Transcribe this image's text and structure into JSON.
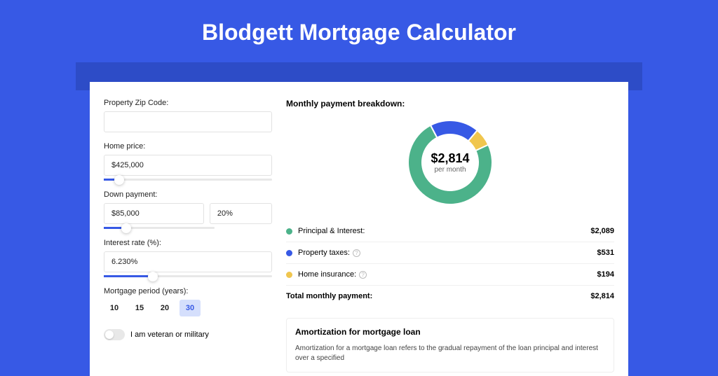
{
  "title": "Blodgett Mortgage Calculator",
  "colors": {
    "page_bg": "#3759e5",
    "band_bg": "#2d4cc7",
    "panel_bg": "#ffffff",
    "accent": "#3759e5",
    "active_btn_bg": "#d5dffc"
  },
  "form": {
    "zip": {
      "label": "Property Zip Code:",
      "value": ""
    },
    "home_price": {
      "label": "Home price:",
      "value": "$425,000",
      "slider_fill_pct": 9
    },
    "down_payment": {
      "label": "Down payment:",
      "value": "$85,000",
      "pct_value": "20%",
      "slider_fill_pct": 20
    },
    "interest_rate": {
      "label": "Interest rate (%):",
      "value": "6.230%",
      "slider_fill_pct": 29
    },
    "period": {
      "label": "Mortgage period (years):",
      "options": [
        "10",
        "15",
        "20",
        "30"
      ],
      "selected": "30"
    },
    "veteran": {
      "label": "I am veteran or military",
      "checked": false
    }
  },
  "breakdown": {
    "title": "Monthly payment breakdown:",
    "donut": {
      "center_value": "$2,814",
      "center_sub": "per month",
      "segments": [
        {
          "label": "Principal & Interest",
          "value": 2089,
          "color": "#4cb28a",
          "show_info": false
        },
        {
          "label": "Property taxes",
          "value": 531,
          "color": "#3759e5",
          "show_info": true
        },
        {
          "label": "Home insurance",
          "value": 194,
          "color": "#f0c64e",
          "show_info": true
        }
      ]
    },
    "rows": [
      {
        "label": "Principal & Interest:",
        "value": "$2,089",
        "dot": "#4cb28a",
        "info": false
      },
      {
        "label": "Property taxes:",
        "value": "$531",
        "dot": "#3759e5",
        "info": true
      },
      {
        "label": "Home insurance:",
        "value": "$194",
        "dot": "#f0c64e",
        "info": true
      }
    ],
    "total": {
      "label": "Total monthly payment:",
      "value": "$2,814"
    }
  },
  "amortization": {
    "title": "Amortization for mortgage loan",
    "text": "Amortization for a mortgage loan refers to the gradual repayment of the loan principal and interest over a specified"
  },
  "chart_style": {
    "type": "donut",
    "outer_radius": 60,
    "inner_radius": 40,
    "background_color": "#ffffff",
    "start_angle_deg": -25
  }
}
